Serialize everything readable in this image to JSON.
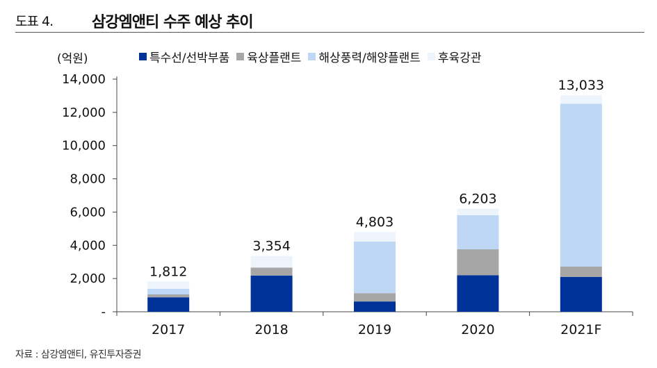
{
  "header": {
    "figure_no": "도표 4.",
    "title": "삼강엠앤티 수주 예상 추이"
  },
  "source": "자료 : 삼강엠앤티, 유진투자증권",
  "chart_data": {
    "type": "bar",
    "stacked": true,
    "unit_label": "(억원)",
    "categories": [
      "2017",
      "2018",
      "2019",
      "2020",
      "2021F"
    ],
    "series": [
      {
        "name": "특수선/선박부품",
        "color": "#003399",
        "values": [
          870,
          2180,
          620,
          2200,
          2100
        ]
      },
      {
        "name": "육상플랜트",
        "color": "#a6a6a6",
        "values": [
          180,
          480,
          500,
          1560,
          620
        ]
      },
      {
        "name": "해상풍력/해양플랜트",
        "color": "#bdd7f5",
        "values": [
          330,
          0,
          3100,
          2050,
          9800
        ]
      },
      {
        "name": "후육강관",
        "color": "#eef4fc",
        "values": [
          432,
          694,
          583,
          393,
          513
        ]
      }
    ],
    "totals": [
      1812,
      3354,
      4803,
      6203,
      13033
    ],
    "total_labels": [
      "1,812",
      "3,354",
      "4,803",
      "6,203",
      "13,033"
    ],
    "ylim": [
      0,
      14000
    ],
    "yticks": [
      0,
      2000,
      4000,
      6000,
      8000,
      10000,
      12000,
      14000
    ],
    "ytick_labels": [
      "-",
      "2,000",
      "4,000",
      "6,000",
      "8,000",
      "10,000",
      "12,000",
      "14,000"
    ],
    "grid": false,
    "legend_position": "top"
  }
}
